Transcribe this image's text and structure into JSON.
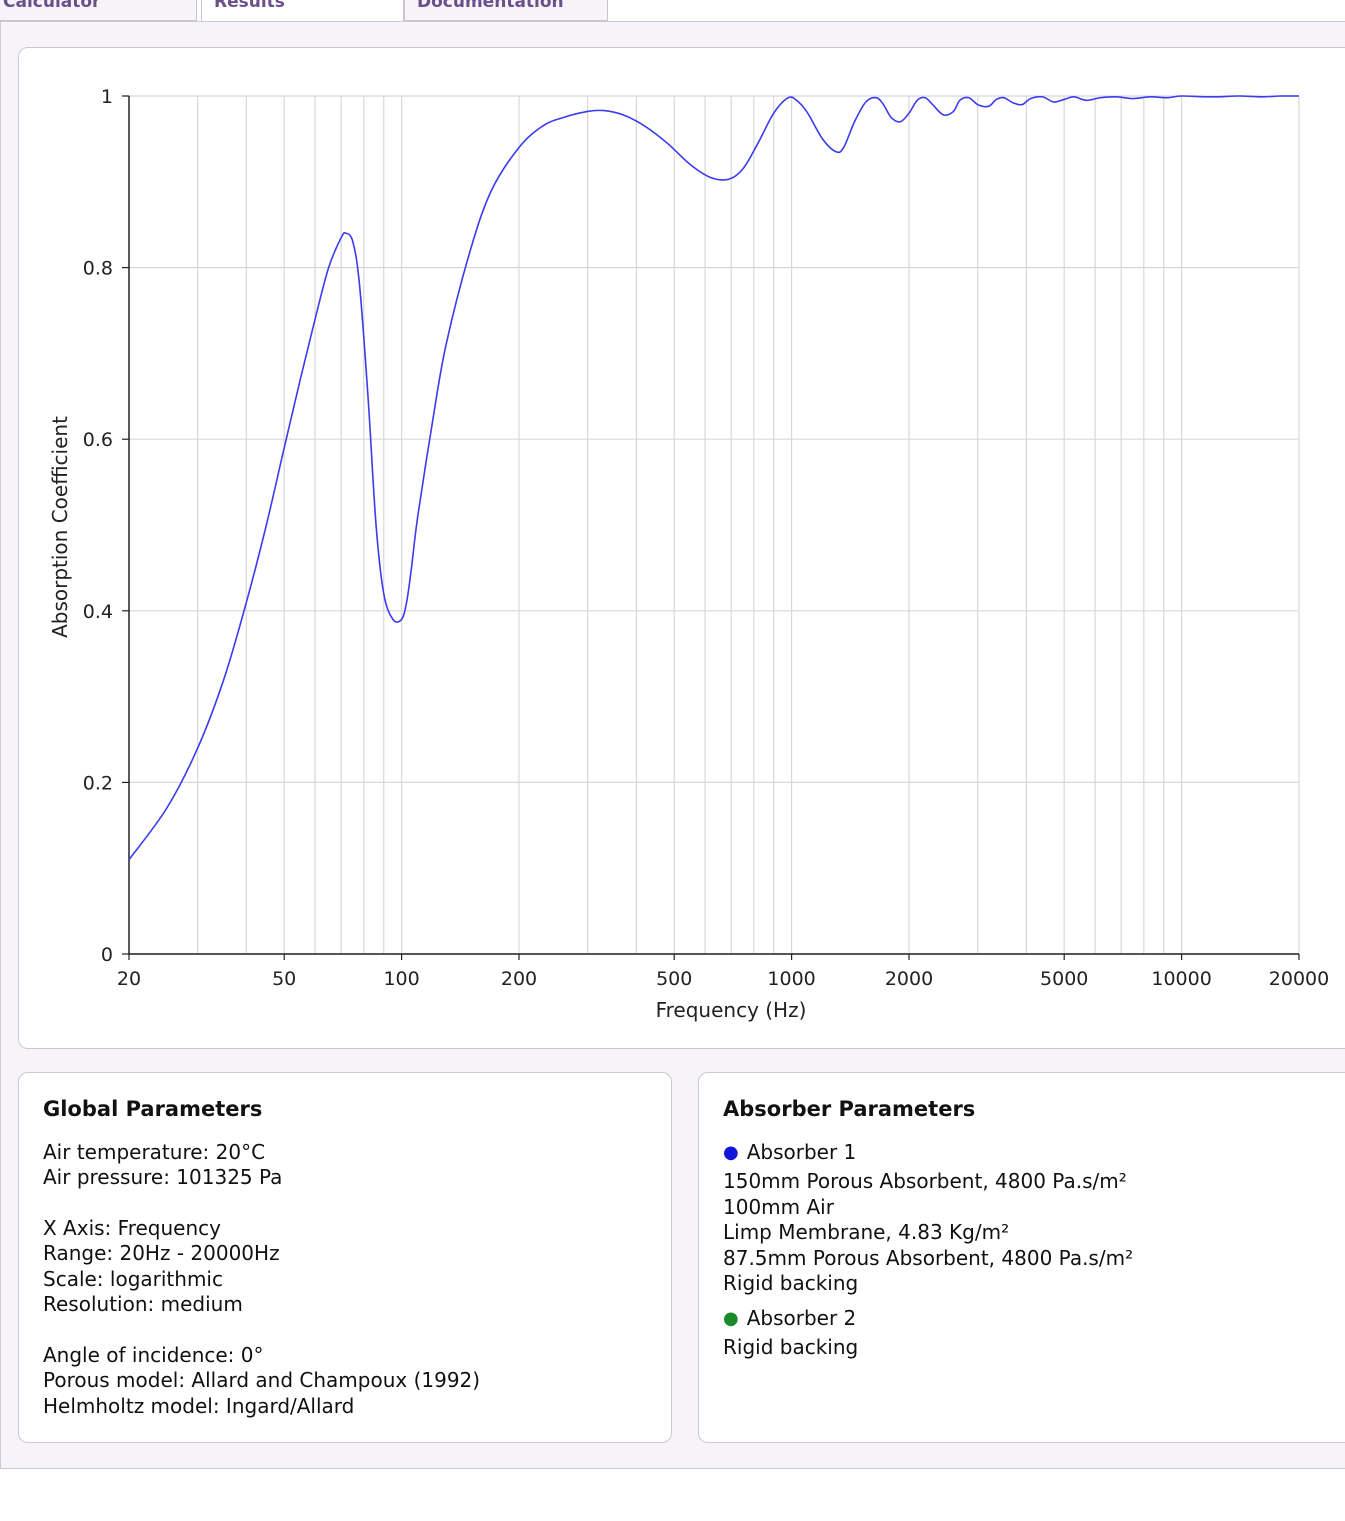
{
  "tabs": [
    {
      "label": "Calculator"
    },
    {
      "label": "Results"
    },
    {
      "label": "Documentation"
    }
  ],
  "chart_data": {
    "type": "line",
    "xlabel": "Frequency (Hz)",
    "ylabel": "Absorption Coefficient",
    "x_scale": "log",
    "xlim": [
      20,
      20000
    ],
    "ylim": [
      0,
      1
    ],
    "x_ticks": [
      "20",
      "50",
      "100",
      "200",
      "500",
      "1000",
      "2000",
      "5000",
      "10000",
      "20000"
    ],
    "y_ticks": [
      "0",
      "0.2",
      "0.4",
      "0.6",
      "0.8",
      "1"
    ],
    "grid": true,
    "series": [
      {
        "color": "#3b3bf0",
        "x": [
          20,
          25,
          30,
          35,
          40,
          45,
          50,
          55,
          60,
          65,
          70,
          72,
          75,
          78,
          82,
          86,
          90,
          95,
          100,
          103,
          106,
          110,
          120,
          130,
          150,
          170,
          200,
          230,
          260,
          300,
          330,
          370,
          420,
          480,
          550,
          620,
          690,
          750,
          820,
          900,
          980,
          1030,
          1100,
          1200,
          1300,
          1360,
          1450,
          1550,
          1650,
          1720,
          1800,
          1900,
          2000,
          2100,
          2200,
          2300,
          2450,
          2600,
          2700,
          2850,
          3000,
          3200,
          3350,
          3500,
          3700,
          3900,
          4100,
          4400,
          4700,
          5000,
          5300,
          5700,
          6200,
          6800,
          7500,
          8300,
          9200,
          10000,
          12000,
          14000,
          16000,
          18000,
          20000
        ],
        "y": [
          0.11,
          0.17,
          0.24,
          0.32,
          0.41,
          0.5,
          0.59,
          0.67,
          0.74,
          0.8,
          0.835,
          0.84,
          0.83,
          0.78,
          0.65,
          0.5,
          0.42,
          0.39,
          0.39,
          0.41,
          0.45,
          0.51,
          0.62,
          0.71,
          0.82,
          0.89,
          0.94,
          0.965,
          0.975,
          0.982,
          0.983,
          0.978,
          0.965,
          0.945,
          0.92,
          0.905,
          0.903,
          0.915,
          0.945,
          0.98,
          0.998,
          0.995,
          0.98,
          0.95,
          0.935,
          0.94,
          0.97,
          0.993,
          0.998,
          0.99,
          0.975,
          0.97,
          0.98,
          0.995,
          0.998,
          0.99,
          0.978,
          0.982,
          0.995,
          0.998,
          0.99,
          0.988,
          0.996,
          0.998,
          0.992,
          0.99,
          0.997,
          0.999,
          0.993,
          0.996,
          0.999,
          0.995,
          0.998,
          0.999,
          0.997,
          0.999,
          0.998,
          1.0,
          0.999,
          1.0,
          0.999,
          1.0,
          1.0
        ]
      }
    ]
  },
  "global_params": {
    "title": "Global Parameters",
    "air_temperature": "Air temperature: 20°C",
    "air_pressure": "Air pressure: 101325 Pa",
    "x_axis": "X Axis: Frequency",
    "range": "Range: 20Hz - 20000Hz",
    "scale": "Scale: logarithmic",
    "resolution": "Resolution: medium",
    "angle": "Angle of incidence: 0°",
    "porous_model": "Porous model: Allard and Champoux (1992)",
    "helmholtz_model": "Helmholtz model: Ingard/Allard"
  },
  "absorber_params": {
    "title": "Absorber Parameters",
    "absorbers": [
      {
        "name": "Absorber 1",
        "dot_color": "#1515d8",
        "layers": [
          "150mm Porous Absorbent, 4800 Pa.s/m²",
          "100mm Air",
          "Limp Membrane, 4.83 Kg/m²",
          "87.5mm Porous Absorbent, 4800 Pa.s/m²",
          "Rigid backing"
        ]
      },
      {
        "name": "Absorber 2",
        "dot_color": "#1a8a2a",
        "layers": [
          "Rigid backing"
        ]
      }
    ]
  }
}
